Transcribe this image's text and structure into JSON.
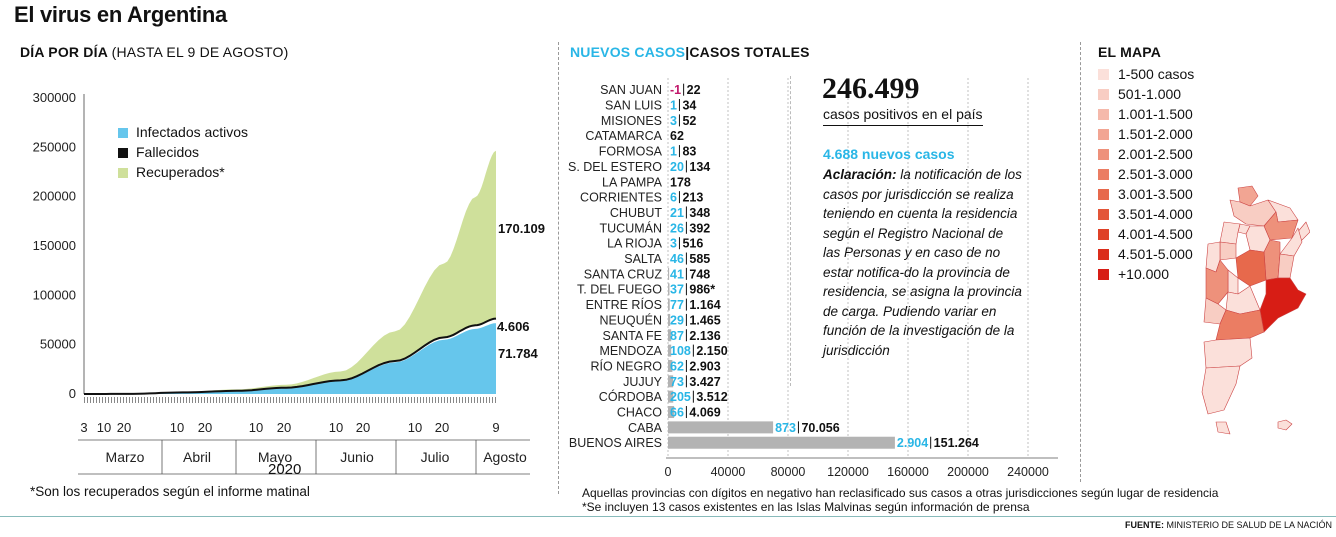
{
  "title": "El virus en Argentina",
  "daily": {
    "heading_bold": "DÍA POR DÍA",
    "heading_light": "(HASTA EL 9 DE AGOSTO)",
    "legend": {
      "activos": "Infectados activos",
      "fallecidos": "Fallecidos",
      "recuperados": "Recuperados*"
    },
    "labels": {
      "total": "170.109",
      "fallecidos": "4.606",
      "activos": "71.784"
    },
    "year": "2020",
    "footnote": "*Son los recuperados según el informe matinal"
  },
  "provinces": {
    "heading_new": "NUEVOS CASOS",
    "heading_sep": "|",
    "heading_total": "CASOS TOTALES",
    "total_cases": "246.499",
    "total_cases_label": "casos positivos en el país",
    "new_cases": "4.688 nuevos casos",
    "note_bold": "Aclaración:",
    "note_text": " la notificación de los casos por jurisdicción se realiza teniendo en cuenta la residencia según el Registro Nacional de las Personas y en caso de no estar notifica-do la provincia de residencia, se asigna la provincia de carga. Pudiendo variar en función de la investigación de la jurisdicción",
    "footnote1": "Aquellas provincias con dígitos en negativo han reclasificado sus casos a otras jurisdicciones según lugar de residencia",
    "footnote2": "*Se incluyen 13 casos existentes en las Islas Malvinas según información de prensa"
  },
  "map": {
    "heading": "EL MAPA",
    "legend": [
      {
        "label": "1-500 casos",
        "color": "#fbe0da"
      },
      {
        "label": "501-1.000",
        "color": "#f8cdc3"
      },
      {
        "label": "1.001-1.500",
        "color": "#f5b9ab"
      },
      {
        "label": "1.501-2.000",
        "color": "#f2a593"
      },
      {
        "label": "2.001-2.500",
        "color": "#ee917b"
      },
      {
        "label": "2.501-3.000",
        "color": "#eb7d63"
      },
      {
        "label": "3.001-3.500",
        "color": "#e7694c"
      },
      {
        "label": "3.501-4.000",
        "color": "#e35538"
      },
      {
        "label": "4.001-4.500",
        "color": "#df4127"
      },
      {
        "label": "4.501-5.000",
        "color": "#db2d1b"
      },
      {
        "label": "+10.000",
        "color": "#d71d15"
      }
    ]
  },
  "source": {
    "bold": "FUENTE:",
    "text": " MINISTERIO DE SALUD DE LA NACIÓN"
  },
  "colors": {
    "activos": "#66c6ec",
    "fallecidos": "#111111",
    "recuperados": "#cfe09b",
    "new_cases": "#29b6e6",
    "total_bar": "#b3b3b3",
    "negative": "#c2186b"
  },
  "chart_data": [
    {
      "type": "area",
      "y_ticks": [
        "0",
        "50000",
        "100000",
        "150000",
        "200000",
        "250000",
        "300000"
      ],
      "ylim": [
        0,
        300000
      ],
      "x_day_ticks": [
        "3",
        "10",
        "20",
        "10",
        "20",
        "10",
        "20",
        "10",
        "20",
        "10",
        "20",
        "9"
      ],
      "months": [
        "Marzo",
        "Abril",
        "Mayo",
        "Junio",
        "Julio",
        "Agosto"
      ],
      "x_points": [
        "3 Mar",
        "20 Mar",
        "10 Abr",
        "1 May",
        "20 May",
        "10 Jun",
        "1 Jul",
        "20 Jul",
        "1 Ago",
        "9 Ago"
      ],
      "series": [
        {
          "name": "Infectados activos",
          "values": [
            0,
            90,
            1500,
            3000,
            6000,
            13000,
            32000,
            55000,
            66000,
            71784
          ]
        },
        {
          "name": "Fallecidos",
          "values": [
            0,
            3,
            100,
            200,
            400,
            800,
            1400,
            2400,
            3600,
            4606
          ]
        },
        {
          "name": "Recuperados*",
          "values": [
            0,
            10,
            500,
            1500,
            3000,
            9000,
            30000,
            75000,
            130000,
            170109
          ]
        }
      ],
      "grid": false,
      "legend": "top-left"
    },
    {
      "type": "bar",
      "orientation": "horizontal",
      "x_ticks": [
        "0",
        "40000",
        "80000",
        "120000",
        "160000",
        "200000",
        "240000"
      ],
      "xlim": [
        0,
        240000
      ],
      "rows": [
        {
          "name": "SAN JUAN",
          "new": "-1",
          "total": "22",
          "new_value": -1,
          "total_value": 22,
          "negative": true
        },
        {
          "name": "SAN LUIS",
          "new": "1",
          "total": "34",
          "new_value": 1,
          "total_value": 34
        },
        {
          "name": "MISIONES",
          "new": "3",
          "total": "52",
          "new_value": 3,
          "total_value": 52
        },
        {
          "name": "CATAMARCA",
          "new": "",
          "total": "62",
          "new_value": 0,
          "total_value": 62
        },
        {
          "name": "FORMOSA",
          "new": "1",
          "total": "83",
          "new_value": 1,
          "total_value": 83
        },
        {
          "name": "S. DEL ESTERO",
          "new": "20",
          "total": "134",
          "new_value": 20,
          "total_value": 134
        },
        {
          "name": "LA PAMPA",
          "new": "",
          "total": "178",
          "new_value": 0,
          "total_value": 178
        },
        {
          "name": "CORRIENTES",
          "new": "6",
          "total": "213",
          "new_value": 6,
          "total_value": 213
        },
        {
          "name": "CHUBUT",
          "new": "21",
          "total": "348",
          "new_value": 21,
          "total_value": 348
        },
        {
          "name": "TUCUMÁN",
          "new": "26",
          "total": "392",
          "new_value": 26,
          "total_value": 392
        },
        {
          "name": "LA RIOJA",
          "new": "3",
          "total": "516",
          "new_value": 3,
          "total_value": 516
        },
        {
          "name": "SALTA",
          "new": "46",
          "total": "585",
          "new_value": 46,
          "total_value": 585
        },
        {
          "name": "SANTA CRUZ",
          "new": "41",
          "total": "748",
          "new_value": 41,
          "total_value": 748
        },
        {
          "name": "T. DEL FUEGO",
          "new": "37",
          "total": "986*",
          "new_value": 37,
          "total_value": 986
        },
        {
          "name": "ENTRE RÍOS",
          "new": "77",
          "total": "1.164",
          "new_value": 77,
          "total_value": 1164
        },
        {
          "name": "NEUQUÉN",
          "new": "29",
          "total": "1.465",
          "new_value": 29,
          "total_value": 1465
        },
        {
          "name": "SANTA FE",
          "new": "87",
          "total": "2.136",
          "new_value": 87,
          "total_value": 2136
        },
        {
          "name": "MENDOZA",
          "new": "108",
          "total": "2.150",
          "new_value": 108,
          "total_value": 2150
        },
        {
          "name": "RÍO NEGRO",
          "new": "62",
          "total": "2.903",
          "new_value": 62,
          "total_value": 2903
        },
        {
          "name": "JUJUY",
          "new": "73",
          "total": "3.427",
          "new_value": 73,
          "total_value": 3427
        },
        {
          "name": "CÓRDOBA",
          "new": "205",
          "total": "3.512",
          "new_value": 205,
          "total_value": 3512
        },
        {
          "name": "CHACO",
          "new": "66",
          "total": "4.069",
          "new_value": 66,
          "total_value": 4069
        },
        {
          "name": "CABA",
          "new": "873",
          "total": "70.056",
          "new_value": 873,
          "total_value": 70056
        },
        {
          "name": "BUENOS AIRES",
          "new": "2.904",
          "total": "151.264",
          "new_value": 2904,
          "total_value": 151264
        }
      ]
    }
  ]
}
